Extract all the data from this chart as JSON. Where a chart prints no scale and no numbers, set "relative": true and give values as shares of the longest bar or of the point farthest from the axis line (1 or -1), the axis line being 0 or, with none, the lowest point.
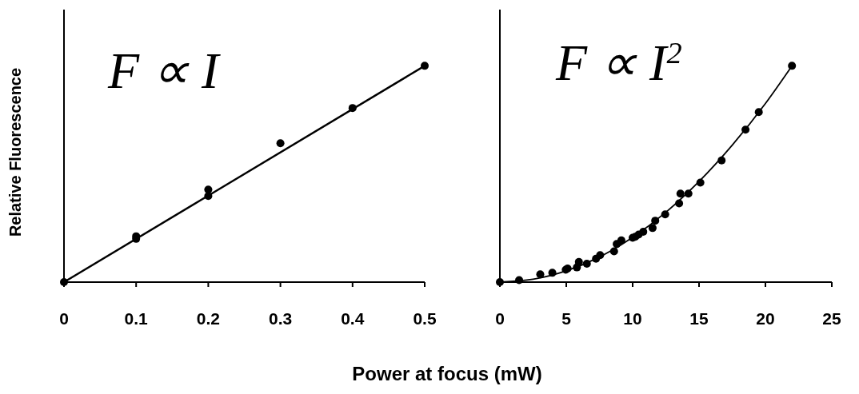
{
  "chart_data": [
    {
      "type": "scatter",
      "relative": true,
      "ylabel": "Relative Fluorescence",
      "xlabel": "Power at focus (mW)",
      "annotations": [
        "F ∝ I"
      ],
      "xlim": [
        0,
        0.5
      ],
      "xticks": [
        0,
        0.1,
        0.2,
        0.3,
        0.4,
        0.5
      ],
      "tick_labels": "x",
      "series": [
        {
          "marker": "circle",
          "color": "#000000",
          "x": [
            0,
            0.1,
            0.1,
            0.2,
            0.2,
            0.3,
            0.4,
            0.5
          ],
          "values": [
            0,
            0.212,
            0.2,
            0.428,
            0.398,
            0.642,
            0.805,
            1.0
          ]
        },
        {
          "type": "line",
          "marker": "none",
          "color": "#000000",
          "x": [
            0,
            0.5
          ],
          "values": [
            0,
            1.0
          ]
        }
      ]
    },
    {
      "type": "scatter",
      "relative": true,
      "annotations": [
        "F ∝ I$^{2}$"
      ],
      "xlim": [
        0,
        25
      ],
      "xticks": [
        0,
        5,
        10,
        15,
        20,
        25
      ],
      "tick_labels": "x",
      "series": [
        {
          "marker": "circle",
          "color": "#000000",
          "x": [
            0,
            1.45,
            3.04,
            3.95,
            4.96,
            5.1,
            5.8,
            5.95,
            6.55,
            7.24,
            7.55,
            8.6,
            8.8,
            9.15,
            10.0,
            10.2,
            10.45,
            10.8,
            11.5,
            11.7,
            12.45,
            13.5,
            13.6,
            14.2,
            15.1,
            16.7,
            18.5,
            19.5,
            22.0
          ],
          "values": [
            0,
            0.009,
            0.036,
            0.043,
            0.057,
            0.063,
            0.068,
            0.093,
            0.085,
            0.108,
            0.125,
            0.142,
            0.176,
            0.193,
            0.205,
            0.21,
            0.22,
            0.233,
            0.25,
            0.284,
            0.313,
            0.364,
            0.409,
            0.409,
            0.46,
            0.5625,
            0.705,
            0.786,
            1.0
          ]
        },
        {
          "type": "line",
          "marker": "none",
          "color": "#000000",
          "x": [
            0,
            2.5,
            5,
            7.5,
            10,
            12.5,
            15,
            17.5,
            20,
            22
          ],
          "values": [
            0,
            0.013,
            0.052,
            0.116,
            0.207,
            0.323,
            0.465,
            0.633,
            0.826,
            1.0
          ]
        }
      ]
    }
  ]
}
